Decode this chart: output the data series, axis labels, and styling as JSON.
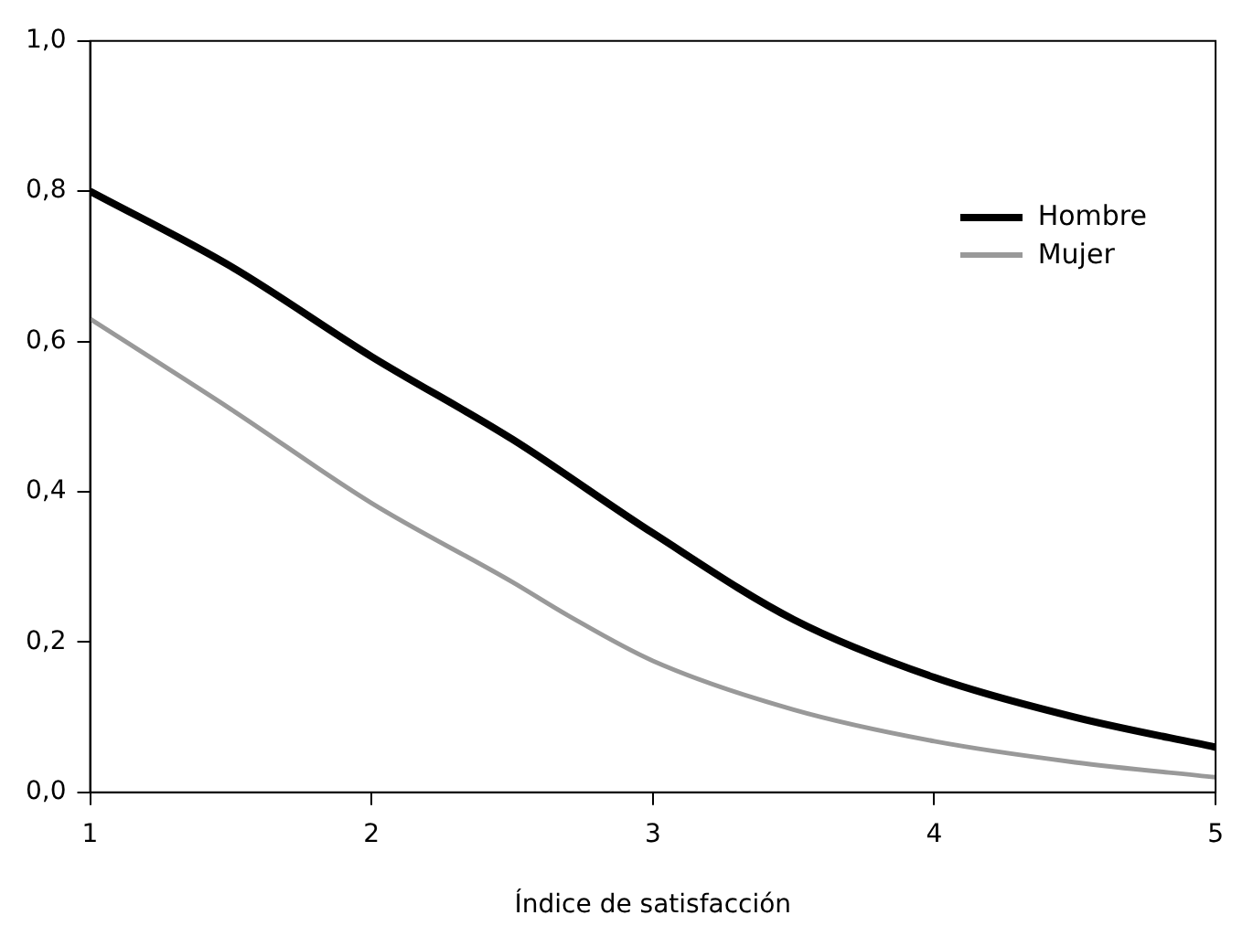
{
  "chart_data": {
    "type": "line",
    "xlabel": "Índice de satisfacción",
    "xlim": [
      1,
      5
    ],
    "xticks": [
      1,
      2,
      3,
      4,
      5
    ],
    "ylim": [
      0,
      1
    ],
    "yticks": [
      {
        "value": 0,
        "label": "0,0"
      },
      {
        "value": 0.2,
        "label": "0,2"
      },
      {
        "value": 0.4,
        "label": "0,4"
      },
      {
        "value": 0.6,
        "label": "0,6"
      },
      {
        "value": 0.8,
        "label": "0,8"
      },
      {
        "value": 1,
        "label": "1,0"
      }
    ],
    "grid": false,
    "legend": "top right",
    "marker": "none",
    "line_style": "solid",
    "series": [
      {
        "name": "Hombre",
        "color": "#000000",
        "x": [
          1,
          1.5,
          2,
          2.5,
          3,
          3.5,
          4,
          4.5,
          5
        ],
        "values": [
          0.8,
          0.7,
          0.58,
          0.47,
          0.345,
          0.23,
          0.153,
          0.1,
          0.06
        ]
      },
      {
        "name": "Mujer",
        "color": "#999999",
        "x": [
          1,
          1.5,
          2,
          2.5,
          2.7,
          3,
          3.5,
          4,
          4.5,
          5
        ],
        "values": [
          0.63,
          0.51,
          0.385,
          0.28,
          0.235,
          0.175,
          0.11,
          0.068,
          0.04,
          0.02
        ]
      }
    ]
  }
}
